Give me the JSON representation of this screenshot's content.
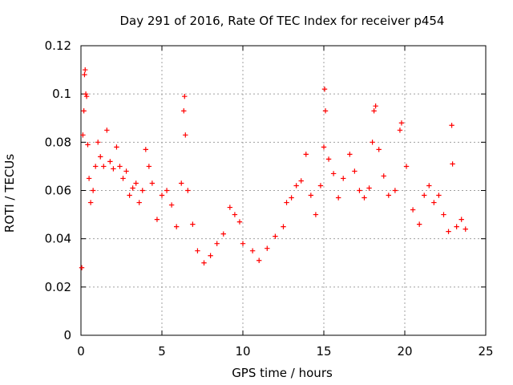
{
  "chart_data": {
    "type": "scatter",
    "title": "Day 291 of 2016, Rate Of TEC Index for receiver p454",
    "xlabel": "GPS time / hours",
    "ylabel": "ROTI / TECUs",
    "xlim": [
      0,
      25
    ],
    "ylim": [
      0,
      0.12
    ],
    "xticks": [
      0,
      5,
      10,
      15,
      20,
      25
    ],
    "xtick_labels": [
      "0",
      "5",
      "10",
      "15",
      "20",
      "25"
    ],
    "yticks": [
      0,
      0.02,
      0.04,
      0.06,
      0.08,
      0.1,
      0.12
    ],
    "ytick_labels": [
      "0",
      "0.02",
      "0.04",
      "0.06",
      "0.08",
      "0.1",
      "0.12"
    ],
    "grid": true,
    "marker": "plus",
    "series": [
      {
        "name": "ROTI",
        "color": "#ff0000",
        "points": [
          [
            0.05,
            0.028
          ],
          [
            0.12,
            0.083
          ],
          [
            0.18,
            0.093
          ],
          [
            0.22,
            0.108
          ],
          [
            0.26,
            0.11
          ],
          [
            0.3,
            0.1
          ],
          [
            0.35,
            0.099
          ],
          [
            0.42,
            0.079
          ],
          [
            0.5,
            0.065
          ],
          [
            0.6,
            0.055
          ],
          [
            0.75,
            0.06
          ],
          [
            0.9,
            0.07
          ],
          [
            1.05,
            0.08
          ],
          [
            1.2,
            0.074
          ],
          [
            1.4,
            0.07
          ],
          [
            1.6,
            0.085
          ],
          [
            1.8,
            0.072
          ],
          [
            2.0,
            0.069
          ],
          [
            2.2,
            0.078
          ],
          [
            2.4,
            0.07
          ],
          [
            2.6,
            0.065
          ],
          [
            2.8,
            0.068
          ],
          [
            3.0,
            0.058
          ],
          [
            3.2,
            0.061
          ],
          [
            3.4,
            0.063
          ],
          [
            3.6,
            0.055
          ],
          [
            3.8,
            0.06
          ],
          [
            4.0,
            0.077
          ],
          [
            4.2,
            0.07
          ],
          [
            4.4,
            0.063
          ],
          [
            4.7,
            0.048
          ],
          [
            5.0,
            0.058
          ],
          [
            5.3,
            0.06
          ],
          [
            5.6,
            0.054
          ],
          [
            5.9,
            0.045
          ],
          [
            6.2,
            0.063
          ],
          [
            6.35,
            0.093
          ],
          [
            6.4,
            0.099
          ],
          [
            6.45,
            0.083
          ],
          [
            6.6,
            0.06
          ],
          [
            6.9,
            0.046
          ],
          [
            7.2,
            0.035
          ],
          [
            7.6,
            0.03
          ],
          [
            8.0,
            0.033
          ],
          [
            8.4,
            0.038
          ],
          [
            8.8,
            0.042
          ],
          [
            9.2,
            0.053
          ],
          [
            9.5,
            0.05
          ],
          [
            9.8,
            0.047
          ],
          [
            10.0,
            0.038
          ],
          [
            10.6,
            0.035
          ],
          [
            11.0,
            0.031
          ],
          [
            11.5,
            0.036
          ],
          [
            12.0,
            0.041
          ],
          [
            12.5,
            0.045
          ],
          [
            12.7,
            0.055
          ],
          [
            13.0,
            0.057
          ],
          [
            13.3,
            0.062
          ],
          [
            13.6,
            0.064
          ],
          [
            13.9,
            0.075
          ],
          [
            14.2,
            0.058
          ],
          [
            14.5,
            0.05
          ],
          [
            14.8,
            0.062
          ],
          [
            15.0,
            0.078
          ],
          [
            15.05,
            0.102
          ],
          [
            15.1,
            0.093
          ],
          [
            15.3,
            0.073
          ],
          [
            15.6,
            0.067
          ],
          [
            15.9,
            0.057
          ],
          [
            16.2,
            0.065
          ],
          [
            16.6,
            0.075
          ],
          [
            16.9,
            0.068
          ],
          [
            17.2,
            0.06
          ],
          [
            17.5,
            0.057
          ],
          [
            17.8,
            0.061
          ],
          [
            18.0,
            0.08
          ],
          [
            18.1,
            0.093
          ],
          [
            18.2,
            0.095
          ],
          [
            18.4,
            0.077
          ],
          [
            18.7,
            0.066
          ],
          [
            19.0,
            0.058
          ],
          [
            19.4,
            0.06
          ],
          [
            19.7,
            0.085
          ],
          [
            19.8,
            0.088
          ],
          [
            20.1,
            0.07
          ],
          [
            20.5,
            0.052
          ],
          [
            20.9,
            0.046
          ],
          [
            21.2,
            0.058
          ],
          [
            21.5,
            0.062
          ],
          [
            21.8,
            0.055
          ],
          [
            22.1,
            0.058
          ],
          [
            22.4,
            0.05
          ],
          [
            22.7,
            0.043
          ],
          [
            22.9,
            0.087
          ],
          [
            22.95,
            0.071
          ],
          [
            23.2,
            0.045
          ],
          [
            23.5,
            0.048
          ],
          [
            23.75,
            0.044
          ]
        ]
      }
    ]
  }
}
